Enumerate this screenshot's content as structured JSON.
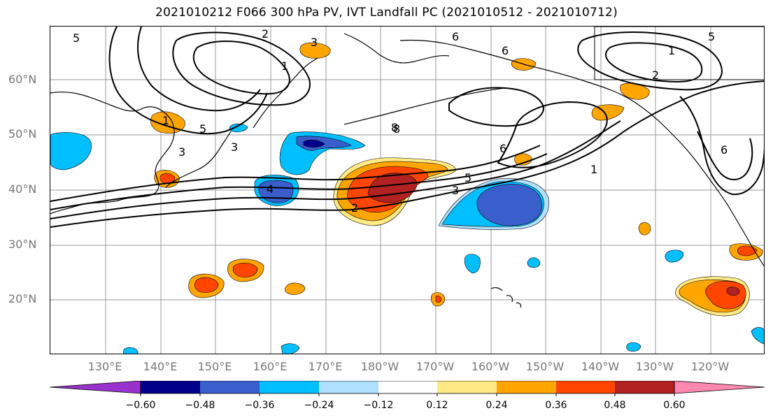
{
  "title": "2021010212 F066 300 hPa PV, IVT Landfall PC (2021010512 - 2021010712)",
  "latitudes": [
    "60°N",
    "50°N",
    "40°N",
    "30°N",
    "20°N"
  ],
  "longitudes": [
    "130°E",
    "140°E",
    "150°E",
    "160°E",
    "170°E",
    "180°W",
    "170°W",
    "160°W",
    "150°W",
    "140°W",
    "130°W",
    "120°W"
  ],
  "colorbar": {
    "ticks": [
      "−0.60",
      "−0.48",
      "−0.36",
      "−0.24",
      "−0.12",
      "0.12",
      "0.24",
      "0.36",
      "0.48",
      "0.60"
    ],
    "colors": [
      "#9932cc",
      "#00008b",
      "#3a5fcd",
      "#00bfff",
      "#b0e0ff",
      "#ffffff",
      "#ffea85",
      "#ffa500",
      "#ff4500",
      "#b22222",
      "#ff88b0"
    ]
  },
  "contour_labels": [
    "5",
    "2",
    "3",
    "1",
    "6",
    "1",
    "6",
    "2",
    "5",
    "3",
    "1",
    "5",
    "3",
    "8",
    "4",
    "5",
    "3",
    "2",
    "6",
    "1",
    "6",
    "8"
  ],
  "map_colors": {
    "negative_strong": "#00008b",
    "negative": "#3a5fcd",
    "negative_weak": "#00bfff",
    "negative_faint": "#b0e0ff",
    "positive_faint": "#ffea85",
    "positive": "#ffa500",
    "positive_strong": "#ff4500",
    "positive_max": "#b22222"
  }
}
